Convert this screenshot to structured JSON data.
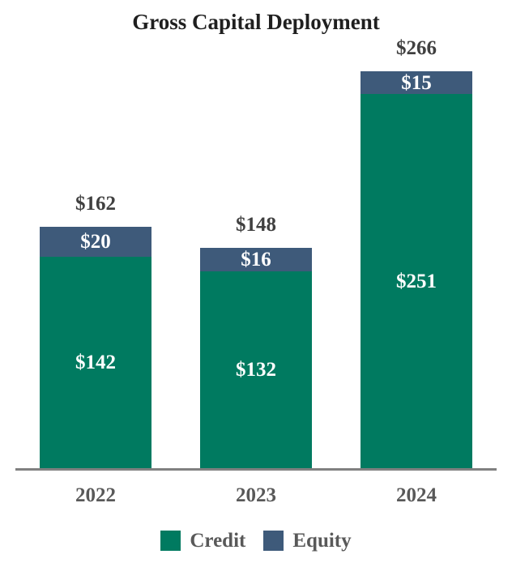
{
  "chart_data": {
    "type": "bar",
    "stacked": true,
    "title": "Gross Capital Deployment",
    "categories": [
      "2022",
      "2023",
      "2024"
    ],
    "series": [
      {
        "name": "Credit",
        "color": "#007a60",
        "values": [
          142,
          132,
          251
        ]
      },
      {
        "name": "Equity",
        "color": "#3e5a7a",
        "values": [
          20,
          16,
          15
        ]
      }
    ],
    "totals": [
      162,
      148,
      266
    ],
    "total_labels": [
      "$162",
      "$148",
      "$266"
    ],
    "segment_labels": [
      [
        "$142",
        "$132",
        "$251"
      ],
      [
        "$20",
        "$16",
        "$15"
      ]
    ],
    "value_prefix": "$",
    "xlabel": "",
    "ylabel": "",
    "ylim": [
      0,
      290
    ],
    "grid": false,
    "legend_position": "bottom",
    "colors": {
      "credit": "#007a60",
      "equity": "#3e5a7a",
      "axis_line": "#808080",
      "total_label": "#404040",
      "axis_label": "#595959",
      "segment_label": "#ffffff",
      "title": "#1f1f1f",
      "background": "#ffffff"
    }
  }
}
